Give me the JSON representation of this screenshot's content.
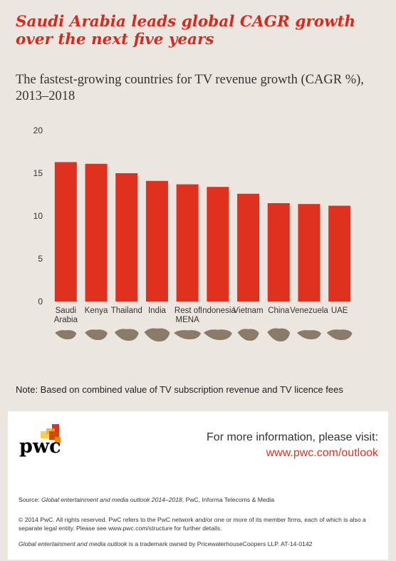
{
  "headline": "Saudi Arabia leads global CAGR growth over the next five years",
  "note": "Note: Based on combined value of TV subscription revenue and TV licence fees",
  "colors": {
    "bar": "#e0301e",
    "map": "#8a7b68",
    "headline": "#d52b1e"
  },
  "chart_data": {
    "type": "bar",
    "title": "The fastest-growing countries for TV revenue growth (CAGR %), 2013–2018",
    "xlabel": "",
    "ylabel": "",
    "ylim": [
      0,
      20
    ],
    "yticks": [
      0,
      5,
      10,
      15,
      20
    ],
    "grid": false,
    "categories": [
      [
        "Saudi",
        "Arabia"
      ],
      [
        "Kenya"
      ],
      [
        "Thailand"
      ],
      [
        "India"
      ],
      [
        "Rest of",
        "MENA"
      ],
      [
        "Indonesia"
      ],
      [
        "Vietnam"
      ],
      [
        "China"
      ],
      [
        "Venezuela"
      ],
      [
        "UAE"
      ]
    ],
    "values": [
      16.3,
      16.1,
      15.0,
      14.1,
      13.7,
      13.4,
      12.6,
      11.5,
      11.4,
      11.2
    ],
    "country_map_icons": [
      "saudi-arabia-map-icon",
      "kenya-map-icon",
      "thailand-map-icon",
      "india-map-icon",
      "mena-map-icon",
      "indonesia-map-icon",
      "vietnam-map-icon",
      "china-map-icon",
      "venezuela-map-icon",
      "uae-map-icon"
    ]
  },
  "footer": {
    "logo_text": "pwc",
    "info_lead": "For more information, please visit:",
    "info_link": "www.pwc.com/outlook",
    "source_prefix": "Source: ",
    "source_title": "Global entertainment and media outlook 2014–2018",
    "source_rest": ", PwC, Informa Telecoms & Media",
    "copyright": "© 2014 PwC. All rights reserved. PwC refers to the PwC network and/or one or more of its member firms, each of which is also a separate legal entity. Please see www.pwc.com/structure for further details.",
    "trademark_title": "Global entertainment and media outlook",
    "trademark_rest": " is a trademark owned by PricewaterhouseCoopers LLP. AT-14-0142"
  }
}
